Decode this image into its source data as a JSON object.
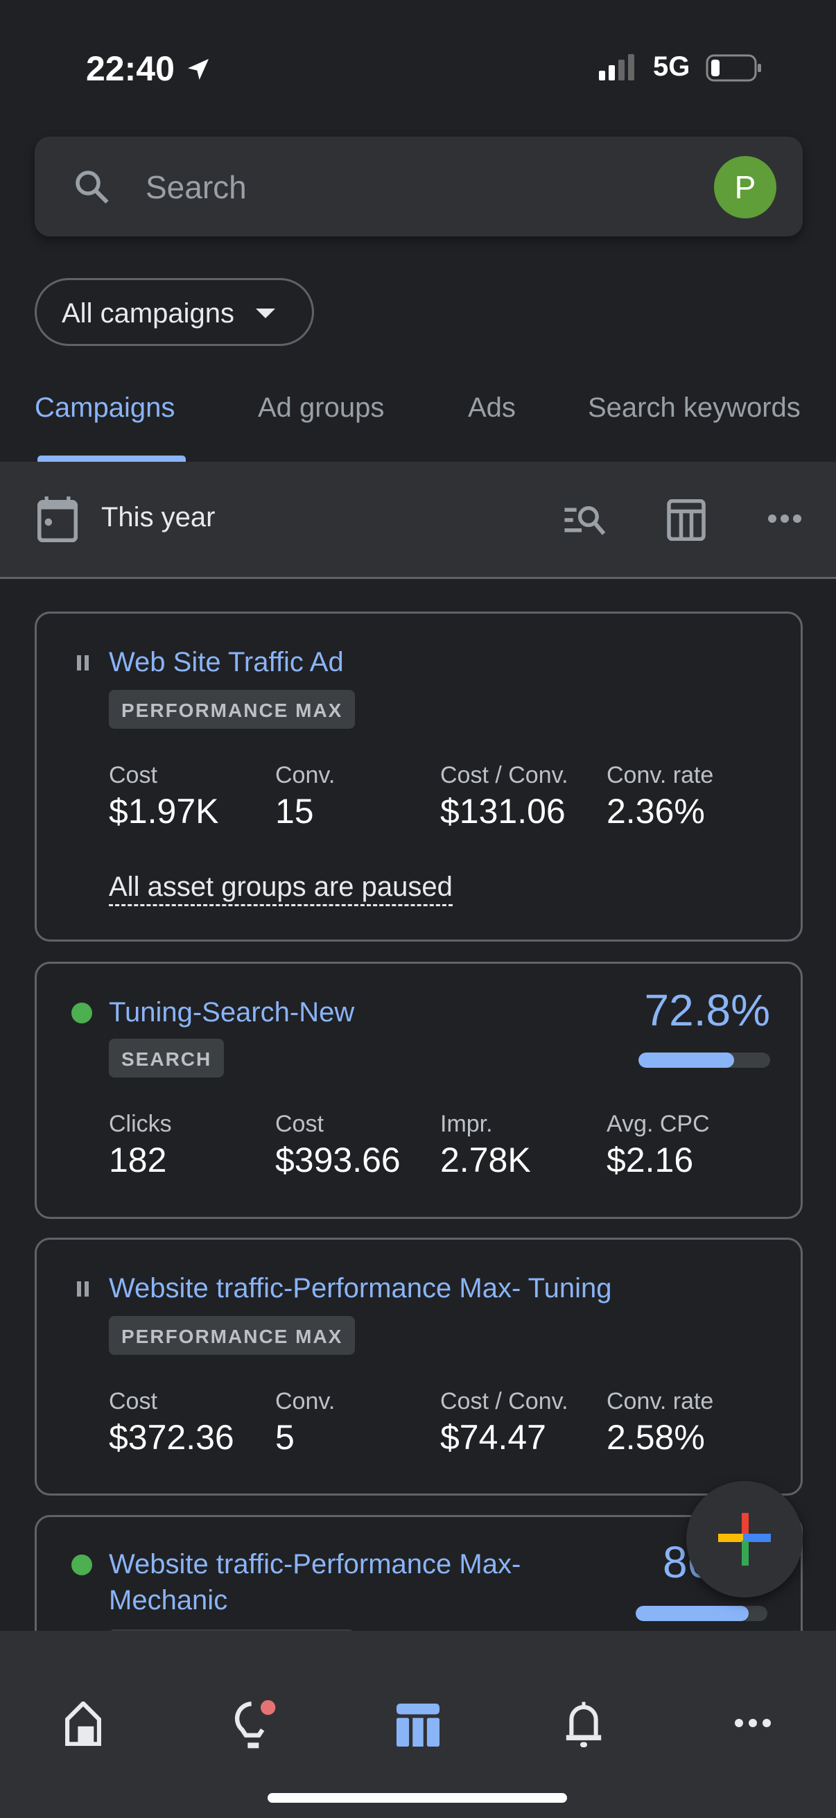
{
  "status_bar": {
    "time": "22:40",
    "network": "5G"
  },
  "search": {
    "placeholder": "Search",
    "avatar_letter": "P"
  },
  "filter": {
    "label": "All campaigns"
  },
  "tabs": [
    {
      "label": "Campaigns",
      "active": true
    },
    {
      "label": "Ad groups"
    },
    {
      "label": "Ads"
    },
    {
      "label": "Search keywords"
    }
  ],
  "toolbar": {
    "date_range": "This year"
  },
  "campaigns": [
    {
      "name": "Web Site Traffic Ad",
      "status": "paused",
      "type": "PERFORMANCE MAX",
      "metrics": [
        {
          "label": "Cost",
          "value": "$1.97K"
        },
        {
          "label": "Conv.",
          "value": "15"
        },
        {
          "label": "Cost / Conv.",
          "value": "$131.06"
        },
        {
          "label": "Conv. rate",
          "value": "2.36%"
        }
      ],
      "note": "All asset groups are paused"
    },
    {
      "name": "Tuning-Search-New",
      "status": "enabled",
      "type": "SEARCH",
      "score": "72.8%",
      "score_value": 72.8,
      "metrics": [
        {
          "label": "Clicks",
          "value": "182"
        },
        {
          "label": "Cost",
          "value": "$393.66"
        },
        {
          "label": "Impr.",
          "value": "2.78K"
        },
        {
          "label": "Avg. CPC",
          "value": "$2.16"
        }
      ]
    },
    {
      "name": "Website traffic-Performance Max- Tuning",
      "status": "paused",
      "type": "PERFORMANCE MAX",
      "metrics": [
        {
          "label": "Cost",
          "value": "$372.36"
        },
        {
          "label": "Conv.",
          "value": "5"
        },
        {
          "label": "Cost / Conv.",
          "value": "$74.47"
        },
        {
          "label": "Conv. rate",
          "value": "2.58%"
        }
      ]
    },
    {
      "name": "Website traffic-Performance Max-Mechanic",
      "name_line1": "Website traffic-Performance Max-",
      "name_line2": "Mechanic",
      "status": "enabled",
      "score": "86.",
      "score_value": 86
    }
  ],
  "bottom_nav": [
    "home-icon",
    "lightbulb-icon",
    "table-icon",
    "bell-icon",
    "more-icon"
  ],
  "colors": {
    "accent": "#8ab4f8",
    "enabled": "#4caf50",
    "background": "#202124",
    "surface": "#303134"
  }
}
